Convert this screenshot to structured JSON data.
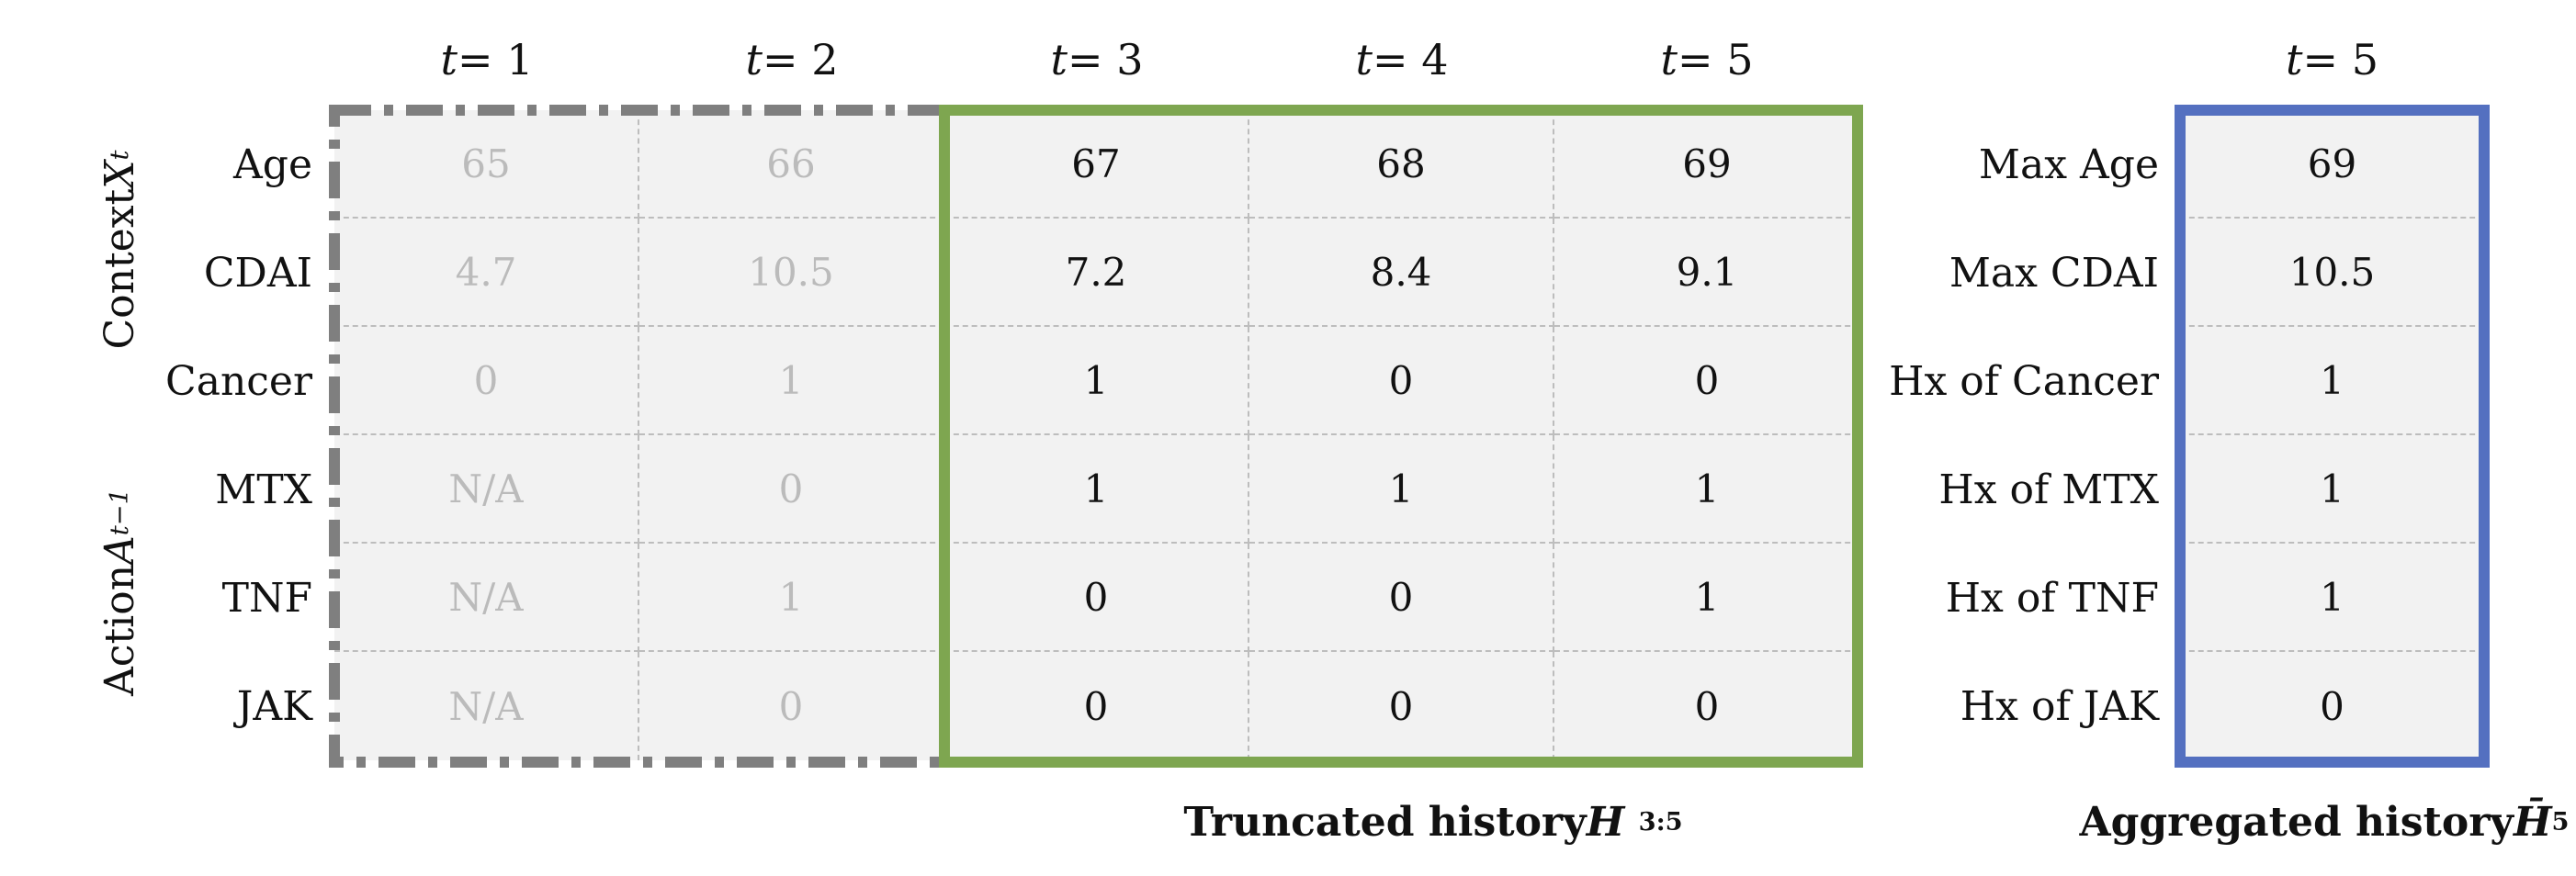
{
  "columns": [
    "t = 1",
    "t = 2",
    "t = 3",
    "t = 4",
    "t = 5"
  ],
  "agg_column": "t = 5",
  "row_labels": [
    "Age",
    "CDAI",
    "Cancer",
    "MTX",
    "TNF",
    "JAK"
  ],
  "agg_row_labels": [
    "Max Age",
    "Max CDAI",
    "Hx of Cancer",
    "Hx of MTX",
    "Hx of TNF",
    "Hx of JAK"
  ],
  "rows": [
    [
      "65",
      "66",
      "67",
      "68",
      "69"
    ],
    [
      "4.7",
      "10.5",
      "7.2",
      "8.4",
      "9.1"
    ],
    [
      "0",
      "1",
      "1",
      "0",
      "0"
    ],
    [
      "N/A",
      "0",
      "1",
      "1",
      "1"
    ],
    [
      "N/A",
      "1",
      "0",
      "0",
      "1"
    ],
    [
      "N/A",
      "0",
      "0",
      "0",
      "0"
    ]
  ],
  "agg_values": [
    "69",
    "10.5",
    "1",
    "1",
    "1",
    "0"
  ],
  "faded_columns": [
    0,
    1
  ],
  "group_labels": {
    "context": {
      "prefix": "Context ",
      "var": "X",
      "sub": "t"
    },
    "action": {
      "prefix": "Action ",
      "var": "A",
      "sub": "t−1"
    }
  },
  "captions": {
    "truncated": {
      "text": "Truncated history ",
      "var": "H",
      "sub": "3:5"
    },
    "aggregated": {
      "text": "Aggregated history ",
      "var": "H̄",
      "sub": "5"
    }
  },
  "colors": {
    "truncated_box": "#7ea650",
    "aggregated_box": "#5470c0",
    "past_box": "#7f7f7f",
    "cell_bg": "#f2f2f2",
    "faded_text": "#bbbbbb"
  }
}
